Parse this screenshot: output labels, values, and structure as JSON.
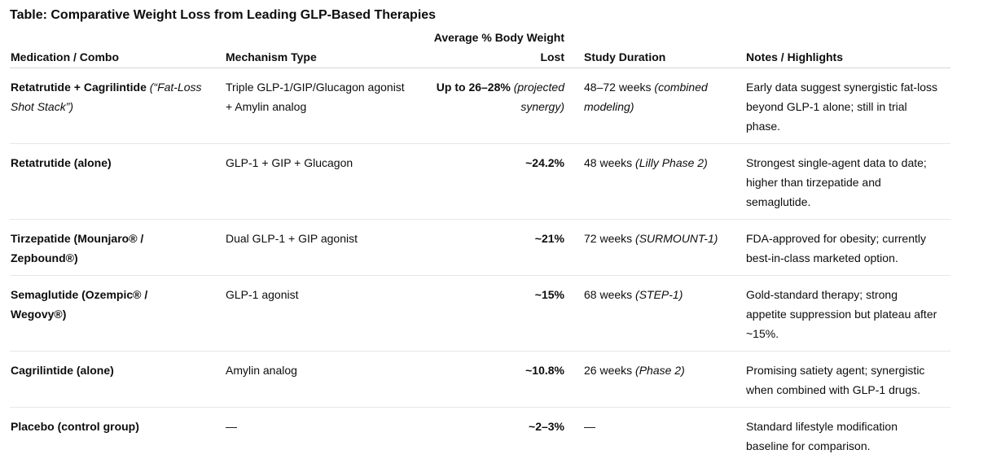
{
  "title": "Table: Comparative Weight Loss from Leading GLP-Based Therapies",
  "table": {
    "headers": {
      "medication": "Medication / Combo",
      "mechanism": "Mechanism Type",
      "weight_lost": "Average % Body Weight Lost",
      "duration": "Study Duration",
      "notes": "Notes / Highlights"
    },
    "rows": [
      {
        "med_main": "Retatrutide + Cagrilintide",
        "med_note": " (“Fat-Loss Shot Stack”)",
        "mechanism": "Triple GLP-1/GIP/Glucagon agonist + Amylin analog",
        "pct_main": "Up to 26–28%",
        "pct_note": " (projected synergy)",
        "duration_main": "48–72 weeks",
        "duration_note": " (combined modeling)",
        "notes": "Early data suggest synergistic fat-loss beyond GLP-1 alone; still in trial phase."
      },
      {
        "med_main": "Retatrutide (alone)",
        "med_note": "",
        "mechanism": "GLP-1 + GIP + Glucagon",
        "pct_main": "~24.2%",
        "pct_note": "",
        "duration_main": "48 weeks",
        "duration_note": " (Lilly Phase 2)",
        "notes": "Strongest single-agent data to date; higher than tirzepatide and semaglutide."
      },
      {
        "med_main": "Tirzepatide (Mounjaro® / Zepbound®)",
        "med_note": "",
        "mechanism": "Dual GLP-1 + GIP agonist",
        "pct_main": "~21%",
        "pct_note": "",
        "duration_main": "72 weeks",
        "duration_note": " (SURMOUNT-1)",
        "notes": "FDA-approved for obesity; currently best-in-class marketed option."
      },
      {
        "med_main": "Semaglutide (Ozempic® / Wegovy®)",
        "med_note": "",
        "mechanism": "GLP-1 agonist",
        "pct_main": "~15%",
        "pct_note": "",
        "duration_main": "68 weeks",
        "duration_note": " (STEP-1)",
        "notes": "Gold-standard therapy; strong appetite suppression but plateau after ~15%."
      },
      {
        "med_main": "Cagrilintide (alone)",
        "med_note": "",
        "mechanism": "Amylin analog",
        "pct_main": "~10.8%",
        "pct_note": "",
        "duration_main": "26 weeks",
        "duration_note": " (Phase 2)",
        "notes": "Promising satiety agent; synergistic when combined with GLP-1 drugs."
      },
      {
        "med_main": "Placebo (control group)",
        "med_note": "",
        "mechanism": "—",
        "pct_main": "~2–3%",
        "pct_note": "",
        "duration_main": "—",
        "duration_note": "",
        "notes": "Standard lifestyle modification baseline for comparison."
      }
    ]
  }
}
